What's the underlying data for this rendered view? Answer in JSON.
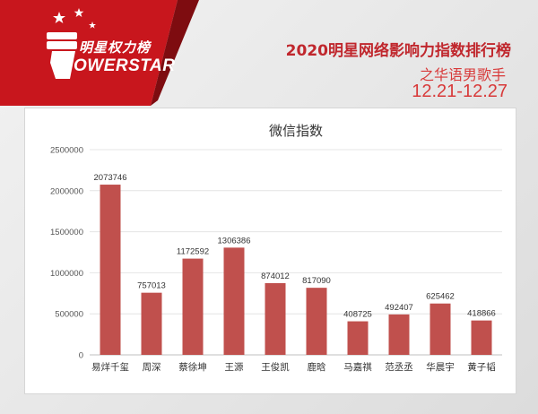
{
  "header": {
    "logo_cn": "明星权力榜",
    "logo_en": "OWERSTAR",
    "title": "2020明星网络影响力指数排行榜",
    "subtitle": "之华语男歌手",
    "date_range": "12.21-12.27"
  },
  "colors": {
    "banner_red": "#c8161d",
    "bar": "#c0504d",
    "headline": "#c0272d"
  },
  "chart_data": {
    "type": "bar",
    "title": "微信指数",
    "xlabel": "",
    "ylabel": "",
    "ylim": [
      0,
      2500000
    ],
    "yticks": [
      0,
      500000,
      1000000,
      1500000,
      2000000,
      2500000
    ],
    "grid": true,
    "legend": "none",
    "categories": [
      "易烊千玺",
      "周深",
      "蔡徐坤",
      "王源",
      "王俊凯",
      "鹿晗",
      "马嘉祺",
      "范丞丞",
      "华晨宇",
      "黄子韬"
    ],
    "series": [
      {
        "values": [
          2073746,
          757013,
          1172592,
          1306386,
          874012,
          817090,
          408725,
          492407,
          625462,
          418866
        ],
        "data_labels": [
          "2073746",
          "757013",
          "1172592",
          "1306386",
          "874012",
          "817090",
          "408725",
          "492407",
          "625462",
          "418866"
        ]
      }
    ]
  }
}
